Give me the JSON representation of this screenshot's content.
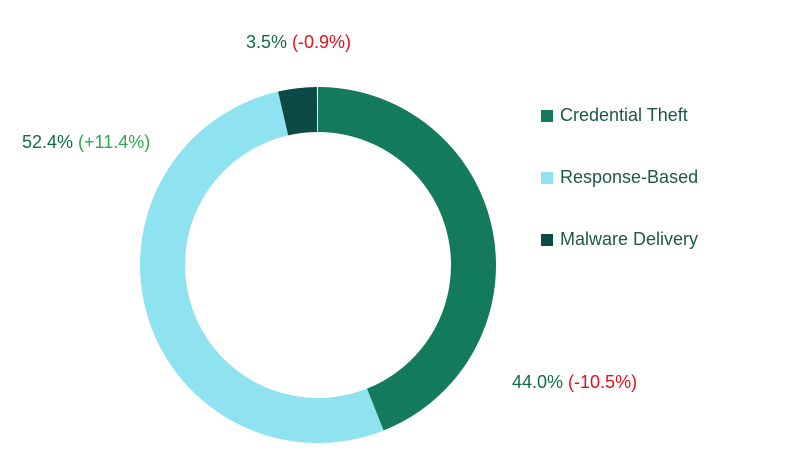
{
  "chart_data": {
    "type": "donut",
    "categories": [
      "Credential Theft",
      "Response-Based",
      "Malware Delivery"
    ],
    "values": [
      44.0,
      52.4,
      3.5
    ],
    "value_labels": [
      "44.0%",
      "52.4%",
      "3.5%"
    ],
    "changes": [
      -10.5,
      11.4,
      -0.9
    ],
    "change_labels": [
      "(-10.5%)",
      "(+11.4%)",
      "(-0.9%)"
    ],
    "colors": [
      "#137a5c",
      "#8fe2f0",
      "#0c4a45"
    ],
    "label_color": "#0f6b4f",
    "positive_color": "#2eaa4e",
    "negative_color": "#e8101a",
    "legend": "right"
  }
}
